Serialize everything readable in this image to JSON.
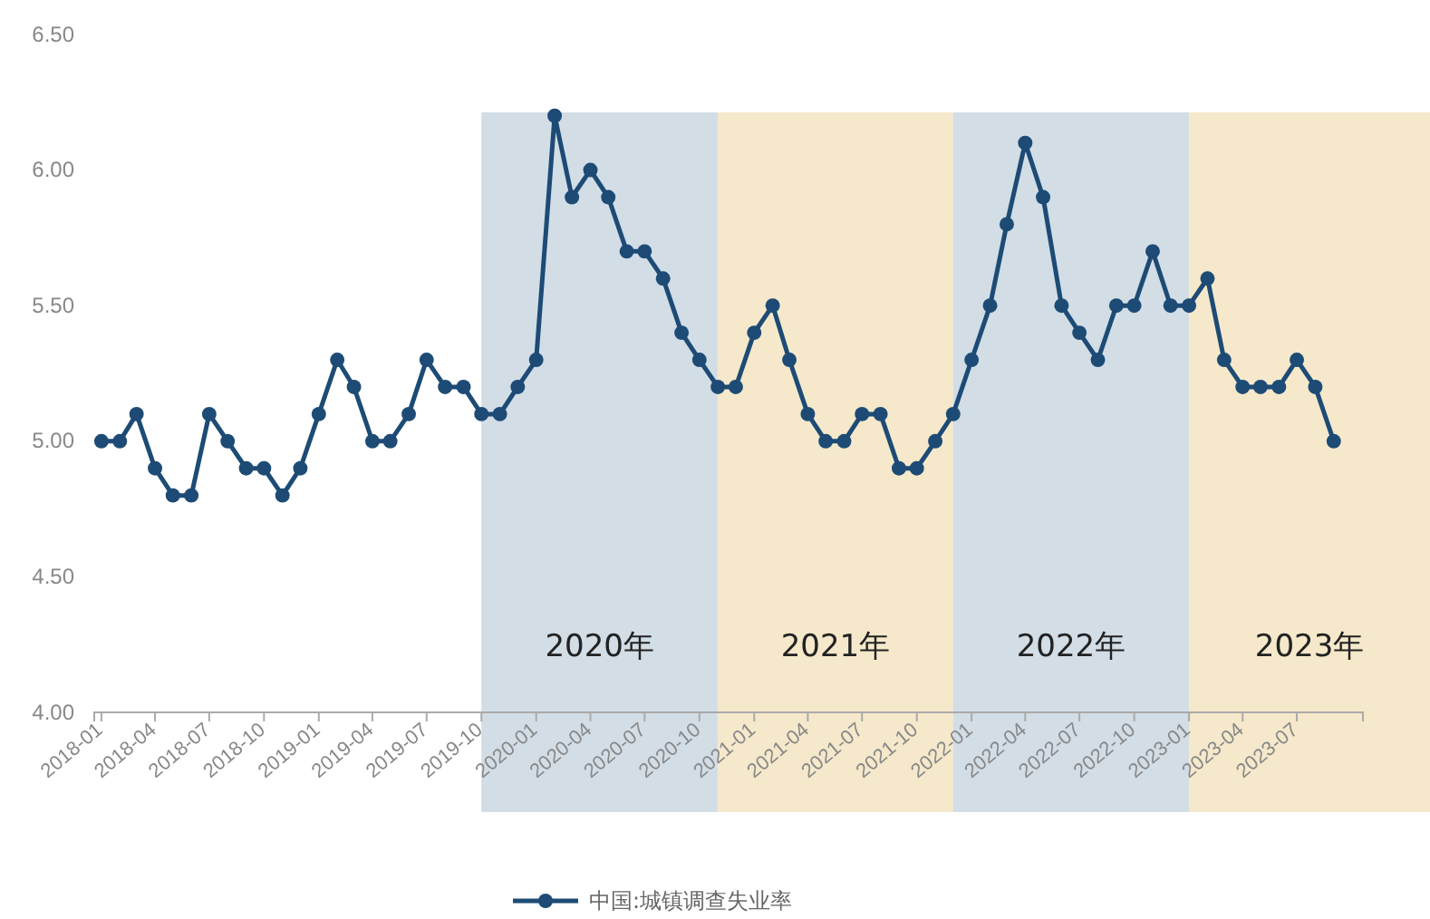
{
  "chart_data": {
    "type": "line",
    "x": [
      "2018-01",
      "2018-02",
      "2018-03",
      "2018-04",
      "2018-05",
      "2018-06",
      "2018-07",
      "2018-08",
      "2018-09",
      "2018-10",
      "2018-11",
      "2018-12",
      "2019-01",
      "2019-02",
      "2019-03",
      "2019-04",
      "2019-05",
      "2019-06",
      "2019-07",
      "2019-08",
      "2019-09",
      "2019-10",
      "2019-11",
      "2019-12",
      "2020-01",
      "2020-02",
      "2020-03",
      "2020-04",
      "2020-05",
      "2020-06",
      "2020-07",
      "2020-08",
      "2020-09",
      "2020-10",
      "2020-11",
      "2020-12",
      "2021-01",
      "2021-02",
      "2021-03",
      "2021-04",
      "2021-05",
      "2021-06",
      "2021-07",
      "2021-08",
      "2021-09",
      "2021-10",
      "2021-11",
      "2021-12",
      "2022-01",
      "2022-02",
      "2022-03",
      "2022-04",
      "2022-05",
      "2022-06",
      "2022-07",
      "2022-08",
      "2022-09",
      "2022-10",
      "2022-11",
      "2022-12",
      "2023-01",
      "2023-02",
      "2023-03",
      "2023-04",
      "2023-05",
      "2023-06",
      "2023-07",
      "2023-08",
      "2023-09"
    ],
    "series": [
      {
        "name": "中国:城镇调查失业率",
        "color": "#1d4b75",
        "values": [
          5.0,
          5.0,
          5.1,
          4.9,
          4.8,
          4.8,
          5.1,
          5.0,
          4.9,
          4.9,
          4.8,
          4.9,
          5.1,
          5.3,
          5.2,
          5.0,
          5.0,
          5.1,
          5.3,
          5.2,
          5.2,
          5.1,
          5.1,
          5.2,
          5.3,
          6.2,
          5.9,
          6.0,
          5.9,
          5.7,
          5.7,
          5.6,
          5.4,
          5.3,
          5.2,
          5.2,
          5.4,
          5.5,
          5.3,
          5.1,
          5.0,
          5.0,
          5.1,
          5.1,
          4.9,
          4.9,
          5.0,
          5.1,
          5.3,
          5.5,
          5.8,
          6.1,
          5.9,
          5.5,
          5.4,
          5.3,
          5.5,
          5.5,
          5.7,
          5.5,
          5.5,
          5.6,
          5.3,
          5.2,
          5.2,
          5.2,
          5.3,
          5.2,
          5.0
        ]
      }
    ],
    "xlim": [
      "2017-12-20",
      "2023-10-20"
    ],
    "xticks": [
      "2018-01",
      "2018-04",
      "2018-07",
      "2018-10",
      "2019-01",
      "2019-04",
      "2019-07",
      "2019-10",
      "2020-01",
      "2020-04",
      "2020-07",
      "2020-10",
      "2021-01",
      "2021-04",
      "2021-07",
      "2021-10",
      "2022-01",
      "2022-04",
      "2022-07",
      "2022-10",
      "2023-01",
      "2023-04",
      "2023-07"
    ],
    "ylim": [
      4.0,
      6.5
    ],
    "yticks": [
      {
        "value": 4.0,
        "label": "4.00"
      },
      {
        "value": 4.5,
        "label": "4.50"
      },
      {
        "value": 5.0,
        "label": "5.00"
      },
      {
        "value": 5.5,
        "label": "5.50"
      },
      {
        "value": 6.0,
        "label": "6.00"
      },
      {
        "value": 6.5,
        "label": "6.50"
      }
    ],
    "bands": [
      {
        "axis": "x",
        "from": "2019-10",
        "to": "2020-11",
        "label": "2020年",
        "color": "#d2dde6"
      },
      {
        "axis": "x",
        "from": "2020-11",
        "to": "2021-12",
        "label": "2021年",
        "color": "#f5e8cb"
      },
      {
        "axis": "x",
        "from": "2021-12",
        "to": "2023-01",
        "label": "2022年",
        "color": "#d2dde6"
      },
      {
        "axis": "x",
        "from": "2023-01",
        "to": "2023-10-20",
        "label": "2023年",
        "color": "#f5e8cb"
      }
    ],
    "marker": "circle",
    "grid": false,
    "legend": "bottom"
  }
}
